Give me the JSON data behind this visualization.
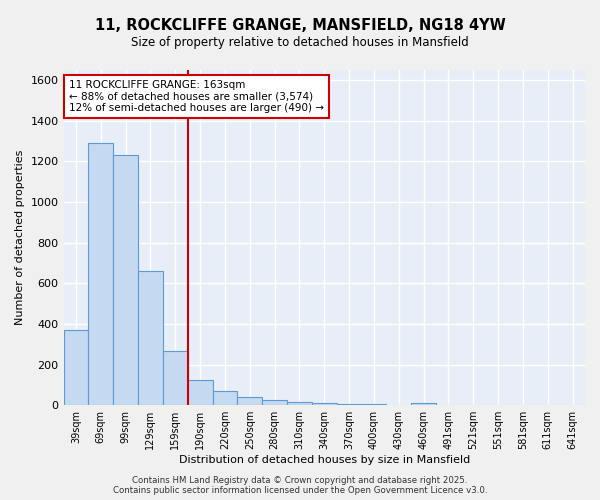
{
  "title_line1": "11, ROCKCLIFFE GRANGE, MANSFIELD, NG18 4YW",
  "title_line2": "Size of property relative to detached houses in Mansfield",
  "xlabel": "Distribution of detached houses by size in Mansfield",
  "ylabel": "Number of detached properties",
  "bar_labels": [
    "39sqm",
    "69sqm",
    "99sqm",
    "129sqm",
    "159sqm",
    "190sqm",
    "220sqm",
    "250sqm",
    "280sqm",
    "310sqm",
    "340sqm",
    "370sqm",
    "400sqm",
    "430sqm",
    "460sqm",
    "491sqm",
    "521sqm",
    "551sqm",
    "581sqm",
    "611sqm",
    "641sqm"
  ],
  "bar_values": [
    370,
    1290,
    1230,
    660,
    265,
    125,
    68,
    38,
    27,
    15,
    10,
    6,
    5,
    0,
    10,
    0,
    0,
    0,
    0,
    0,
    0
  ],
  "bar_color": "#c5d9f0",
  "bar_edge_color": "#5b9bd5",
  "vline_x": 4.5,
  "vline_color": "#cc0000",
  "annotation_text": "11 ROCKCLIFFE GRANGE: 163sqm\n← 88% of detached houses are smaller (3,574)\n12% of semi-detached houses are larger (490) →",
  "annotation_box_color": "#ffffff",
  "annotation_box_edge": "#cc0000",
  "ylim": [
    0,
    1650
  ],
  "yticks": [
    0,
    200,
    400,
    600,
    800,
    1000,
    1200,
    1400,
    1600
  ],
  "bg_color": "#e8eef7",
  "grid_color": "#ffffff",
  "fig_bg_color": "#f0f0f0",
  "footer_line1": "Contains HM Land Registry data © Crown copyright and database right 2025.",
  "footer_line2": "Contains public sector information licensed under the Open Government Licence v3.0."
}
